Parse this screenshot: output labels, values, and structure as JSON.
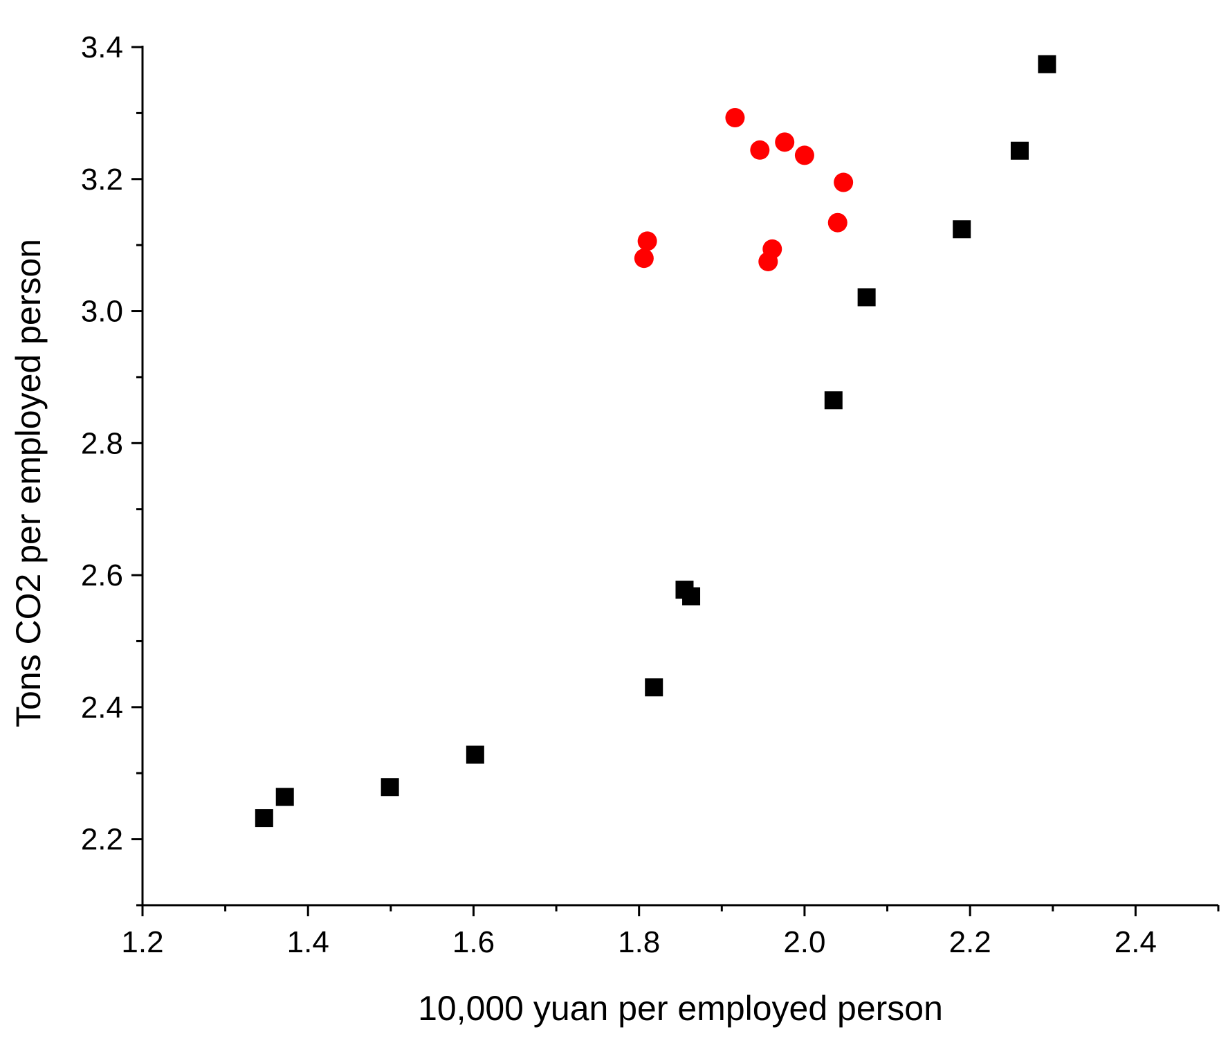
{
  "chart_data": {
    "type": "scatter",
    "title": "",
    "xlabel": "10,000 yuan per employed person",
    "ylabel": "Tons CO2 per employed person",
    "xlim": [
      1.2,
      2.5
    ],
    "ylim": [
      2.1,
      3.4
    ],
    "x_ticks": [
      "1.2",
      "1.4",
      "1.6",
      "1.8",
      "2.0",
      "2.2",
      "2.4"
    ],
    "y_ticks": [
      "2.2",
      "2.4",
      "2.6",
      "2.8",
      "3.0",
      "3.2",
      "3.4"
    ],
    "grid": false,
    "legend": "none",
    "series": [
      {
        "marker": "square",
        "color": "#000000",
        "points": [
          {
            "x": 1.347,
            "y": 2.232
          },
          {
            "x": 1.372,
            "y": 2.264
          },
          {
            "x": 1.499,
            "y": 2.279
          },
          {
            "x": 1.602,
            "y": 2.328
          },
          {
            "x": 1.818,
            "y": 2.43
          },
          {
            "x": 1.855,
            "y": 2.578
          },
          {
            "x": 1.863,
            "y": 2.568
          },
          {
            "x": 2.035,
            "y": 2.865
          },
          {
            "x": 2.075,
            "y": 3.021
          },
          {
            "x": 2.19,
            "y": 3.124
          },
          {
            "x": 2.26,
            "y": 3.243
          },
          {
            "x": 2.293,
            "y": 3.374
          }
        ]
      },
      {
        "marker": "circle",
        "color": "#ff0000",
        "points": [
          {
            "x": 1.916,
            "y": 3.293
          },
          {
            "x": 1.946,
            "y": 3.244
          },
          {
            "x": 1.976,
            "y": 3.256
          },
          {
            "x": 2.0,
            "y": 3.236
          },
          {
            "x": 2.047,
            "y": 3.195
          },
          {
            "x": 2.04,
            "y": 3.134
          },
          {
            "x": 1.81,
            "y": 3.106
          },
          {
            "x": 1.806,
            "y": 3.08
          },
          {
            "x": 1.961,
            "y": 3.094
          },
          {
            "x": 1.956,
            "y": 3.075
          }
        ]
      }
    ]
  }
}
